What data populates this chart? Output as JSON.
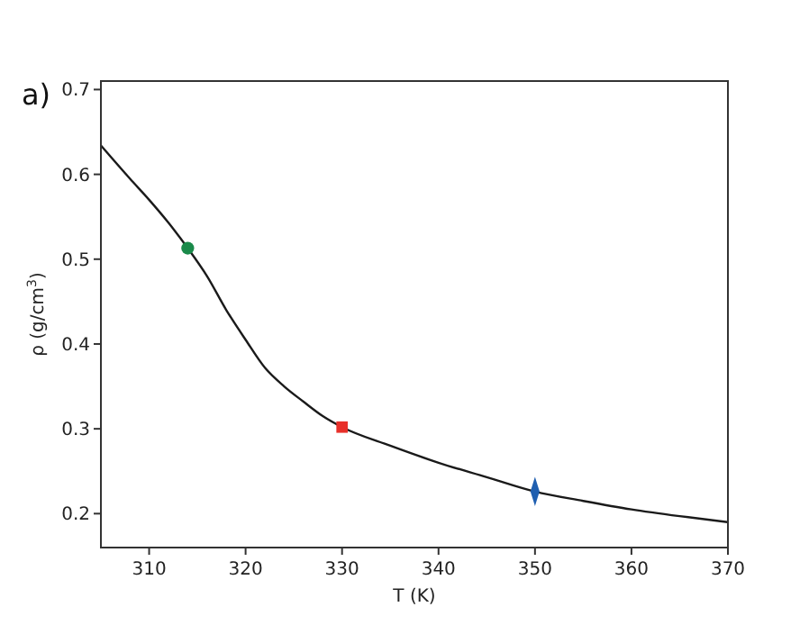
{
  "chart_data": {
    "type": "line",
    "xlabel": "T (K)",
    "ylabel": "ρ (g/cm$^{3}$)",
    "annotations": [
      "a)"
    ],
    "xlim": [
      305,
      370
    ],
    "ylim": [
      0.16,
      0.71
    ],
    "xticks": [
      310,
      320,
      330,
      340,
      350,
      360,
      370
    ],
    "yticks": [
      0.2,
      0.3,
      0.4,
      0.5,
      0.6,
      0.7
    ],
    "grid": false,
    "series": [
      {
        "color": "#1a1a1a",
        "marker": "none",
        "x": [
          305,
          308,
          310,
          312,
          314,
          316,
          318,
          320,
          322,
          324,
          326,
          328,
          330,
          335,
          340,
          345,
          350,
          355,
          360,
          365,
          370
        ],
        "values": [
          0.634,
          0.595,
          0.57,
          0.543,
          0.513,
          0.48,
          0.44,
          0.405,
          0.372,
          0.35,
          0.332,
          0.315,
          0.302,
          0.28,
          0.26,
          0.243,
          0.226,
          0.215,
          0.205,
          0.197,
          0.19
        ]
      },
      {
        "type": "scatter",
        "color": "#1a8a4a",
        "marker": "circle",
        "x": [
          314
        ],
        "values": [
          0.513
        ]
      },
      {
        "type": "scatter",
        "color": "#e8302a",
        "marker": "square",
        "x": [
          330
        ],
        "values": [
          0.302
        ]
      },
      {
        "type": "scatter",
        "color": "#1f5fb0",
        "marker": "diamond",
        "x": [
          350
        ],
        "values": [
          0.226
        ]
      }
    ]
  }
}
